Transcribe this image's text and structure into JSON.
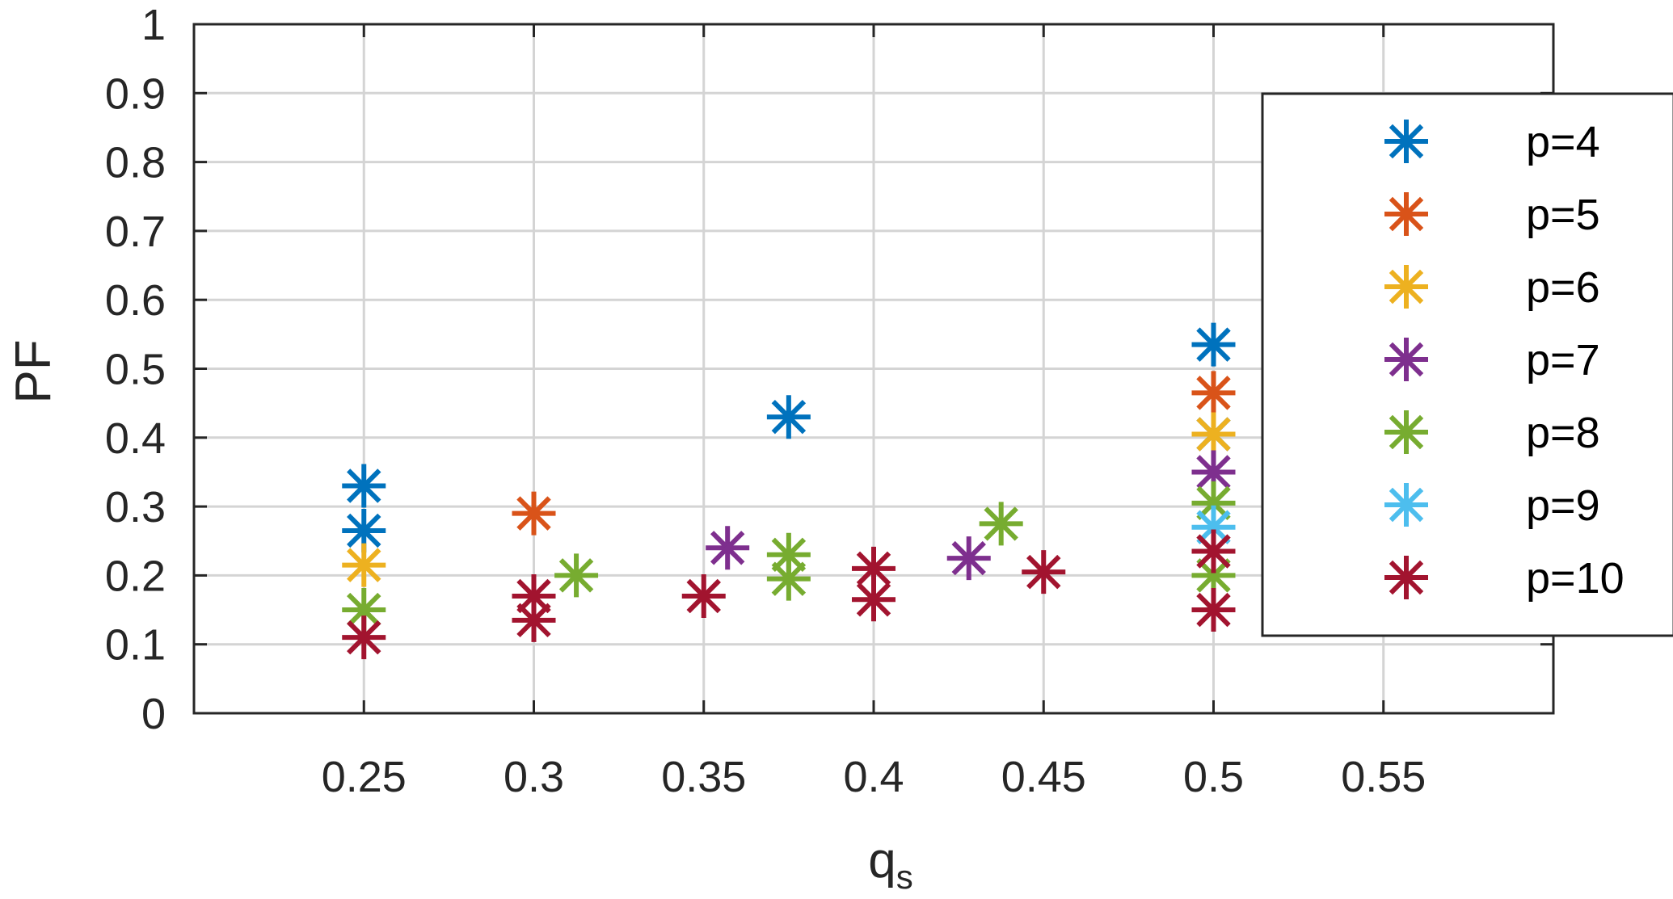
{
  "chart_data": {
    "type": "scatter",
    "xlabel": "q",
    "xlabel_sub": "s",
    "ylabel": "PF",
    "xlim": [
      0.2,
      0.6
    ],
    "ylim": [
      0,
      1
    ],
    "x_ticks": [
      0.25,
      0.3,
      0.35,
      0.4,
      0.45,
      0.5,
      0.55
    ],
    "x_tick_labels": [
      "0.25",
      "0.3",
      "0.35",
      "0.4",
      "0.45",
      "0.5",
      "0.55"
    ],
    "y_ticks": [
      0,
      0.1,
      0.2,
      0.3,
      0.4,
      0.5,
      0.6,
      0.7,
      0.8,
      0.9,
      1
    ],
    "y_tick_labels": [
      "0",
      "0.1",
      "0.2",
      "0.3",
      "0.4",
      "0.5",
      "0.6",
      "0.7",
      "0.8",
      "0.9",
      "1"
    ],
    "grid": true,
    "marker": "asterisk",
    "legend_position": "right",
    "series": [
      {
        "name": "p=4",
        "color": "#0072BD",
        "points": [
          [
            0.25,
            0.33
          ],
          [
            0.25,
            0.265
          ],
          [
            0.375,
            0.43
          ],
          [
            0.5,
            0.535
          ],
          [
            0.5,
            0.405
          ]
        ]
      },
      {
        "name": "p=5",
        "color": "#D95319",
        "points": [
          [
            0.3,
            0.29
          ],
          [
            0.5,
            0.465
          ]
        ]
      },
      {
        "name": "p=6",
        "color": "#EDB120",
        "points": [
          [
            0.25,
            0.215
          ],
          [
            0.5,
            0.405
          ]
        ]
      },
      {
        "name": "p=7",
        "color": "#7E2F8E",
        "points": [
          [
            0.357,
            0.24
          ],
          [
            0.428,
            0.225
          ],
          [
            0.5,
            0.35
          ]
        ]
      },
      {
        "name": "p=8",
        "color": "#77AC30",
        "points": [
          [
            0.25,
            0.15
          ],
          [
            0.3125,
            0.2
          ],
          [
            0.375,
            0.23
          ],
          [
            0.375,
            0.195
          ],
          [
            0.4375,
            0.275
          ],
          [
            0.5,
            0.305
          ],
          [
            0.5,
            0.2
          ]
        ]
      },
      {
        "name": "p=9",
        "color": "#4DBEEE",
        "points": [
          [
            0.5,
            0.27
          ]
        ]
      },
      {
        "name": "p=10",
        "color": "#A2142F",
        "points": [
          [
            0.25,
            0.11
          ],
          [
            0.3,
            0.17
          ],
          [
            0.3,
            0.135
          ],
          [
            0.35,
            0.17
          ],
          [
            0.4,
            0.21
          ],
          [
            0.4,
            0.165
          ],
          [
            0.45,
            0.205
          ],
          [
            0.5,
            0.235
          ],
          [
            0.5,
            0.15
          ]
        ]
      }
    ]
  }
}
